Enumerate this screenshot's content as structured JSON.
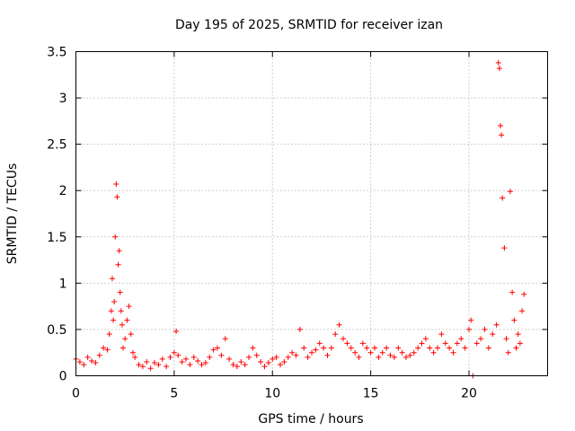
{
  "chart_data": {
    "type": "scatter",
    "title": "Day 195 of 2025, SRMTID for receiver izan",
    "xlabel": "GPS time / hours",
    "ylabel": "SRMTID / TECUs",
    "xlim": [
      0,
      24
    ],
    "ylim": [
      0,
      3.5
    ],
    "x_ticks": [
      0,
      5,
      10,
      15,
      20
    ],
    "x_tick_labels": [
      "0",
      "5",
      "10",
      "15",
      "20"
    ],
    "y_ticks": [
      0,
      0.5,
      1,
      1.5,
      2,
      2.5,
      3,
      3.5
    ],
    "y_tick_labels": [
      "0",
      "0.5",
      "1",
      "1.5",
      "2",
      "2.5",
      "3",
      "3.5"
    ],
    "grid": true,
    "marker": "+",
    "color": "#ff0000",
    "series": [
      {
        "name": "SRMTID",
        "x": [
          0.0,
          0.2,
          0.4,
          0.6,
          0.8,
          1.0,
          1.2,
          1.4,
          1.6,
          1.7,
          1.8,
          1.85,
          1.9,
          1.95,
          2.0,
          2.05,
          2.1,
          2.15,
          2.2,
          2.25,
          2.3,
          2.35,
          2.4,
          2.5,
          2.6,
          2.7,
          2.8,
          2.9,
          3.0,
          3.2,
          3.4,
          3.6,
          3.8,
          4.0,
          4.2,
          4.4,
          4.6,
          4.8,
          5.0,
          5.1,
          5.2,
          5.4,
          5.6,
          5.8,
          6.0,
          6.2,
          6.4,
          6.6,
          6.8,
          7.0,
          7.2,
          7.4,
          7.6,
          7.8,
          8.0,
          8.2,
          8.4,
          8.6,
          8.8,
          9.0,
          9.2,
          9.4,
          9.6,
          9.8,
          10.0,
          10.2,
          10.4,
          10.6,
          10.8,
          11.0,
          11.2,
          11.4,
          11.6,
          11.8,
          12.0,
          12.2,
          12.4,
          12.6,
          12.8,
          13.0,
          13.2,
          13.4,
          13.6,
          13.8,
          14.0,
          14.2,
          14.4,
          14.6,
          14.8,
          15.0,
          15.2,
          15.4,
          15.6,
          15.8,
          16.0,
          16.2,
          16.4,
          16.6,
          16.8,
          17.0,
          17.2,
          17.4,
          17.6,
          17.8,
          18.0,
          18.2,
          18.4,
          18.6,
          18.8,
          19.0,
          19.2,
          19.4,
          19.6,
          19.8,
          20.0,
          20.1,
          20.2,
          20.4,
          20.6,
          20.8,
          21.0,
          21.2,
          21.4,
          21.5,
          21.55,
          21.6,
          21.65,
          21.7,
          21.8,
          21.9,
          22.0,
          22.1,
          22.2,
          22.3,
          22.4,
          22.5,
          22.6,
          22.7,
          22.8
        ],
        "y": [
          0.18,
          0.15,
          0.12,
          0.2,
          0.16,
          0.14,
          0.22,
          0.3,
          0.28,
          0.45,
          0.7,
          1.05,
          0.6,
          0.8,
          1.5,
          2.07,
          1.93,
          1.2,
          1.35,
          0.9,
          0.7,
          0.55,
          0.3,
          0.4,
          0.6,
          0.75,
          0.45,
          0.25,
          0.2,
          0.12,
          0.1,
          0.15,
          0.08,
          0.14,
          0.12,
          0.18,
          0.1,
          0.2,
          0.25,
          0.48,
          0.22,
          0.15,
          0.18,
          0.12,
          0.2,
          0.16,
          0.12,
          0.14,
          0.2,
          0.28,
          0.3,
          0.22,
          0.4,
          0.18,
          0.12,
          0.1,
          0.15,
          0.12,
          0.2,
          0.3,
          0.22,
          0.15,
          0.1,
          0.14,
          0.18,
          0.2,
          0.12,
          0.15,
          0.2,
          0.25,
          0.22,
          0.5,
          0.3,
          0.2,
          0.25,
          0.28,
          0.35,
          0.3,
          0.22,
          0.3,
          0.45,
          0.55,
          0.4,
          0.35,
          0.3,
          0.25,
          0.2,
          0.35,
          0.3,
          0.25,
          0.3,
          0.2,
          0.25,
          0.3,
          0.22,
          0.2,
          0.3,
          0.25,
          0.2,
          0.22,
          0.25,
          0.3,
          0.35,
          0.4,
          0.3,
          0.25,
          0.3,
          0.45,
          0.35,
          0.3,
          0.25,
          0.35,
          0.4,
          0.3,
          0.5,
          0.6,
          0.0,
          0.35,
          0.4,
          0.5,
          0.3,
          0.45,
          0.55,
          3.38,
          3.32,
          2.7,
          2.6,
          1.92,
          1.38,
          0.4,
          0.25,
          1.99,
          0.9,
          0.6,
          0.3,
          0.45,
          0.35,
          0.7,
          0.88
        ]
      }
    ]
  }
}
